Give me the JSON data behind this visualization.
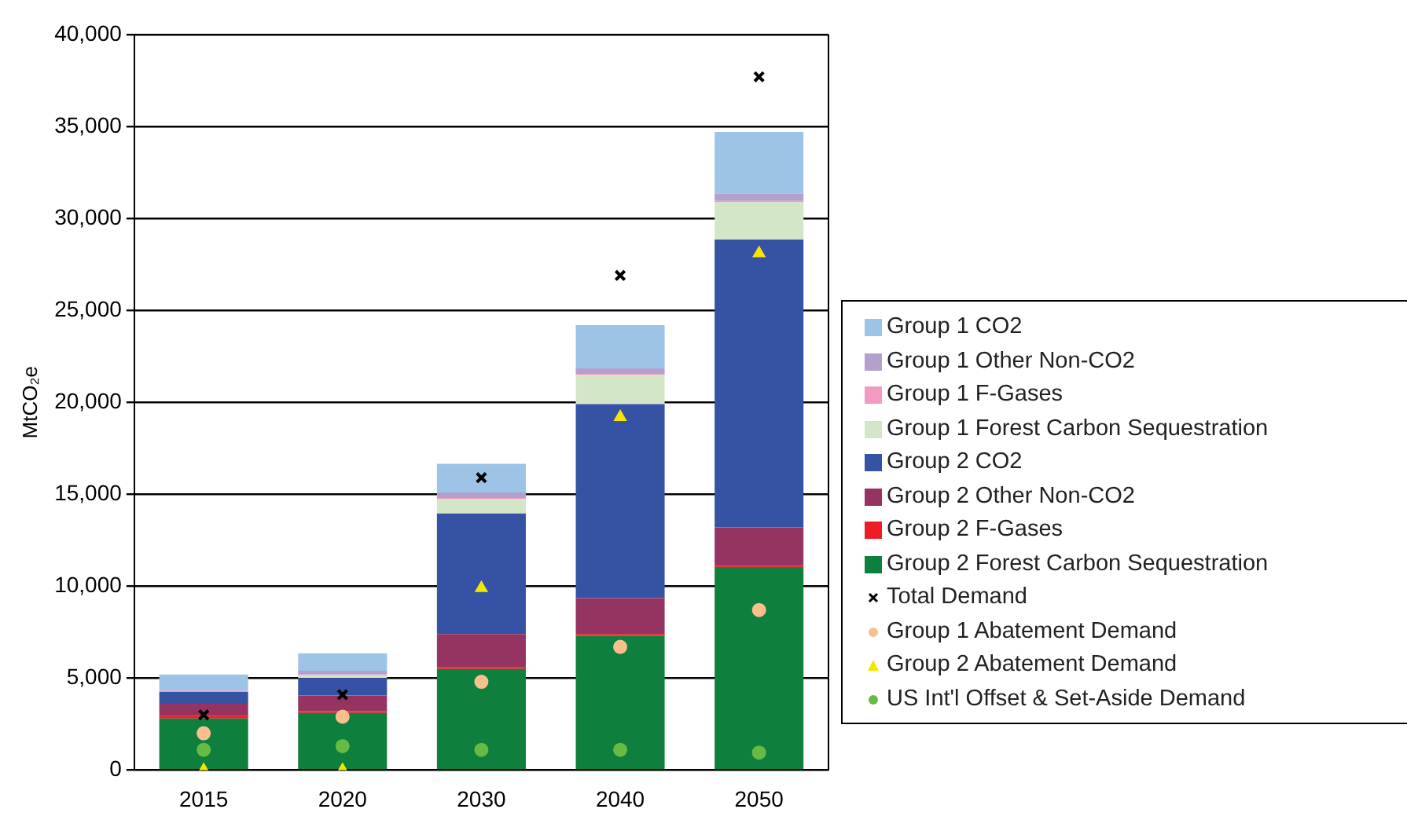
{
  "chart_data": {
    "type": "bar",
    "stacked": true,
    "ylabel": "MtCO₂e",
    "categories": [
      "2015",
      "2020",
      "2030",
      "2040",
      "2050"
    ],
    "ylim": [
      0,
      40000
    ],
    "yticks": [
      {
        "value": 0,
        "label": "0"
      },
      {
        "value": 5000,
        "label": "5,000"
      },
      {
        "value": 10000,
        "label": "10,000"
      },
      {
        "value": 15000,
        "label": "15,000"
      },
      {
        "value": 20000,
        "label": "20,000"
      },
      {
        "value": 25000,
        "label": "25,000"
      },
      {
        "value": 30000,
        "label": "30,000"
      },
      {
        "value": 35000,
        "label": "35,000"
      },
      {
        "value": 40000,
        "label": "40,000"
      }
    ],
    "grid": "y",
    "legend": "right",
    "series": [
      {
        "name": "Group 2 Forest Carbon Sequestration",
        "color": "#0f7f3d",
        "values": [
          2800,
          3100,
          5500,
          7300,
          11000
        ]
      },
      {
        "name": "Group 2 F-Gases",
        "color": "#ee1c25",
        "values": [
          150,
          100,
          100,
          100,
          100
        ]
      },
      {
        "name": "Group 2 Other Non-CO2",
        "color": "#953461",
        "values": [
          650,
          850,
          1800,
          1950,
          2100
        ]
      },
      {
        "name": "Group 2 CO2",
        "color": "#3652a5",
        "values": [
          650,
          950,
          6550,
          10550,
          15650
        ]
      },
      {
        "name": "Group 1 Forest Carbon Sequestration",
        "color": "#d3e6c8",
        "values": [
          0,
          150,
          800,
          1600,
          2050
        ]
      },
      {
        "name": "Group 1 F-Gases",
        "color": "#f19ac2",
        "values": [
          50,
          50,
          50,
          50,
          50
        ]
      },
      {
        "name": "Group 1 Other Non-CO2",
        "color": "#b4a0cc",
        "values": [
          50,
          200,
          300,
          300,
          400
        ]
      },
      {
        "name": "Group 1 CO2",
        "color": "#9dc3e6",
        "values": [
          850,
          950,
          1550,
          2350,
          3350
        ]
      },
      {
        "name": "Total Demand",
        "type": "scatter",
        "marker": "cross",
        "color": "#000000",
        "values": [
          3000,
          4100,
          15900,
          26900,
          37700
        ]
      },
      {
        "name": "Group 1 Abatement Demand",
        "type": "scatter",
        "marker": "circle",
        "color": "#f9c08e",
        "values": [
          2000,
          2900,
          4800,
          6700,
          8700
        ]
      },
      {
        "name": "Group 2 Abatement Demand",
        "type": "scatter",
        "marker": "triangle",
        "color": "#f5e600",
        "values": [
          0,
          0,
          9900,
          19200,
          28100
        ]
      },
      {
        "name": "US Int'l Offset & Set-Aside Demand",
        "type": "scatter",
        "marker": "circle",
        "color": "#66bb44",
        "values": [
          1100,
          1300,
          1100,
          1100,
          950
        ]
      }
    ]
  }
}
